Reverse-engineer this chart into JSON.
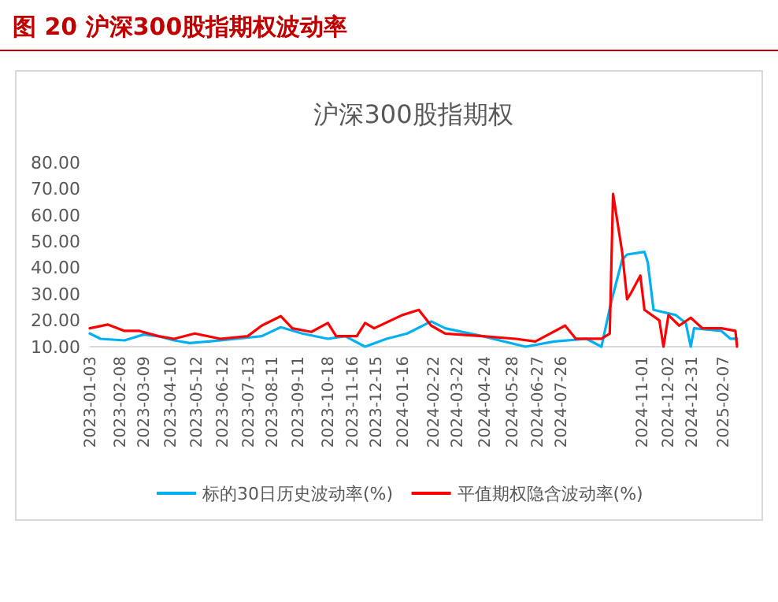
{
  "chart_data": {
    "type": "line",
    "title": "图 20   沪深300股指期权波动率",
    "subtitle": "沪深300股指期权",
    "xlim": [
      "2023-01-03",
      "2025-02-24"
    ],
    "xticks": [
      "2023-01-03",
      "2023-02-08",
      "2023-03-09",
      "2023-04-10",
      "2023-05-12",
      "2023-06-12",
      "2023-07-13",
      "2023-08-11",
      "2023-09-11",
      "2023-10-18",
      "2023-11-16",
      "2023-12-15",
      "2024-01-16",
      "2024-02-22",
      "2024-03-22",
      "2024-04-24",
      "2024-05-28",
      "2024-06-27",
      "2024-07-26",
      "2024-11-01",
      "2024-12-02",
      "2024-12-31",
      "2025-02-07"
    ],
    "ylim": [
      10,
      80
    ],
    "yticks": [
      {
        "value": 10,
        "label": "10.00"
      },
      {
        "value": 20,
        "label": "20.00"
      },
      {
        "value": 30,
        "label": "30.00"
      },
      {
        "value": 40,
        "label": "40.00"
      },
      {
        "value": 50,
        "label": "50.00"
      },
      {
        "value": 60,
        "label": "60.00"
      },
      {
        "value": 70,
        "label": "70.00"
      },
      {
        "value": 80,
        "label": "80.00"
      }
    ],
    "grid": false,
    "legend": "bottom",
    "line_style": "solid",
    "marker": "none",
    "series": [
      {
        "name": "标的30日历史波动率(%)",
        "color": "#00b0f0",
        "x": [
          "2023-01-03",
          "2023-01-16",
          "2023-02-14",
          "2023-03-09",
          "2023-03-27",
          "2023-04-15",
          "2023-05-04",
          "2023-05-27",
          "2023-06-29",
          "2023-07-30",
          "2023-08-22",
          "2023-09-17",
          "2023-10-18",
          "2023-11-08",
          "2023-12-02",
          "2023-12-28",
          "2024-01-22",
          "2024-02-20",
          "2024-03-08",
          "2024-04-22",
          "2024-06-13",
          "2024-07-18",
          "2024-08-26",
          "2024-09-13",
          "2024-09-24",
          "2024-10-08",
          "2024-10-14",
          "2024-11-04",
          "2024-11-08",
          "2024-11-15",
          "2024-12-12",
          "2024-12-24",
          "2024-12-30",
          "2025-01-03",
          "2025-02-05",
          "2025-02-16",
          "2025-02-24"
        ],
        "values": [
          15,
          13,
          12.4,
          14.6,
          14,
          12.4,
          11.4,
          12,
          13,
          14,
          17.4,
          15,
          13,
          14,
          10,
          13,
          15,
          19.6,
          17,
          14,
          10,
          12,
          13,
          10,
          26,
          43,
          45,
          46,
          42,
          24,
          22,
          19,
          10,
          17,
          16,
          13,
          13
        ]
      },
      {
        "name": "平值期权隐含波动率(%)",
        "color": "#ff0000",
        "x": [
          "2023-01-03",
          "2023-01-25",
          "2023-02-14",
          "2023-03-04",
          "2023-03-27",
          "2023-04-15",
          "2023-05-10",
          "2023-06-10",
          "2023-07-13",
          "2023-07-30",
          "2023-08-22",
          "2023-09-05",
          "2023-09-28",
          "2023-10-18",
          "2023-10-28",
          "2023-11-22",
          "2023-12-02",
          "2023-12-13",
          "2024-01-16",
          "2024-02-05",
          "2024-02-20",
          "2024-03-08",
          "2024-04-22",
          "2024-06-01",
          "2024-06-25",
          "2024-07-31",
          "2024-08-13",
          "2024-09-13",
          "2024-09-23",
          "2024-09-27",
          "2024-10-08",
          "2024-10-14",
          "2024-10-18",
          "2024-10-30",
          "2024-11-04",
          "2024-11-22",
          "2024-11-27",
          "2024-12-03",
          "2024-12-16",
          "2024-12-30",
          "2025-01-13",
          "2025-02-05",
          "2025-02-22",
          "2025-02-24"
        ],
        "values": [
          17,
          18.4,
          16,
          16,
          14,
          13,
          15,
          13,
          14,
          18,
          21.6,
          17,
          15.6,
          19,
          14,
          14,
          19,
          17,
          22,
          24,
          18,
          15,
          14,
          13,
          12,
          18,
          13,
          13,
          15,
          68,
          46,
          28,
          30,
          37,
          24,
          20,
          10,
          22,
          18,
          21,
          17,
          17,
          16,
          10
        ]
      }
    ]
  }
}
